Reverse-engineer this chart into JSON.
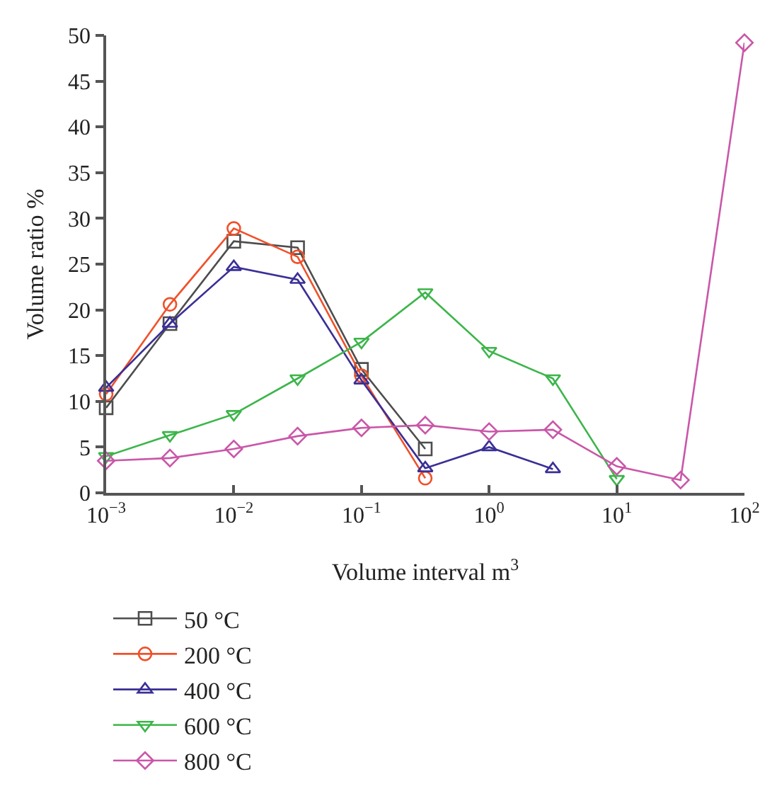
{
  "chart_data": {
    "type": "line",
    "xlabel": "Volume interval m$^{3}$",
    "ylabel": "Volume ratio %",
    "log": "x",
    "grid": false,
    "legend": "bottom",
    "xlim": [
      0.001,
      100
    ],
    "xticks": [
      {
        "value": 0.001,
        "label": "10$^{−3}$"
      },
      {
        "value": 0.01,
        "label": "10$^{−2}$"
      },
      {
        "value": 0.1,
        "label": "10$^{−1}$"
      },
      {
        "value": 1,
        "label": "10$^{0}$"
      },
      {
        "value": 10,
        "label": "10$^{1}$"
      },
      {
        "value": 100,
        "label": "10$^{2}$"
      }
    ],
    "ylim": [
      0,
      50
    ],
    "yticks": [
      0,
      5,
      10,
      15,
      20,
      25,
      30,
      35,
      40,
      45,
      50
    ],
    "line_style": "solid",
    "series": [
      {
        "name": "50 °C",
        "color": "#4d4d4d",
        "marker": "square",
        "x": [
          0.001,
          0.00316,
          0.01,
          0.0316,
          0.1,
          0.316
        ],
        "values": [
          9.3,
          18.5,
          27.5,
          26.8,
          13.5,
          4.8
        ]
      },
      {
        "name": "200 °C",
        "color": "#f0502a",
        "marker": "circle",
        "x": [
          0.001,
          0.00316,
          0.01,
          0.0316,
          0.1,
          0.316
        ],
        "values": [
          10.8,
          20.6,
          28.9,
          25.8,
          12.8,
          1.6
        ]
      },
      {
        "name": "400 °C",
        "color": "#3a2f96",
        "marker": "triangle",
        "x": [
          0.001,
          0.00316,
          0.01,
          0.0316,
          0.1,
          0.316,
          1,
          3.16
        ],
        "values": [
          11.5,
          18.5,
          24.7,
          23.3,
          12.3,
          2.7,
          5.0,
          2.6
        ]
      },
      {
        "name": "600 °C",
        "color": "#3cb54a",
        "marker": "triangle-down",
        "x": [
          0.001,
          0.00316,
          0.01,
          0.0316,
          0.1,
          0.316,
          1,
          3.16,
          10
        ],
        "values": [
          4.0,
          6.3,
          8.6,
          12.5,
          16.5,
          21.9,
          15.5,
          12.5,
          1.5
        ]
      },
      {
        "name": "800 °C",
        "color": "#c957a8",
        "marker": "diamond",
        "x": [
          0.001,
          0.00316,
          0.01,
          0.0316,
          0.1,
          0.316,
          1,
          3.16,
          10,
          31.6,
          100
        ],
        "values": [
          3.5,
          3.8,
          4.8,
          6.2,
          7.1,
          7.4,
          6.7,
          6.9,
          2.9,
          1.4,
          49.2
        ]
      }
    ]
  }
}
